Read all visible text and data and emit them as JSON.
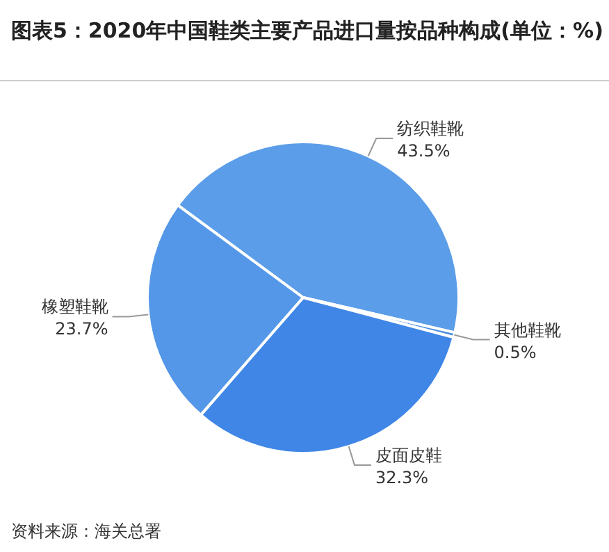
{
  "chart_data": {
    "type": "pie",
    "title": "图表5：2020年中国鞋类主要产品进口量按品种构成(单位：%)",
    "categories": [
      "纺织鞋靴",
      "其他鞋靴",
      "皮面皮鞋",
      "橡塑鞋靴"
    ],
    "values": [
      43.5,
      0.5,
      32.3,
      23.7
    ],
    "colors": [
      "#5b9de9",
      "#4a8fe0",
      "#3f86e6",
      "#5497e8"
    ],
    "value_labels": [
      "43.5%",
      "0.5%",
      "32.3%",
      "23.7%"
    ],
    "annotations": [
      "资料来源：海关总署"
    ]
  }
}
